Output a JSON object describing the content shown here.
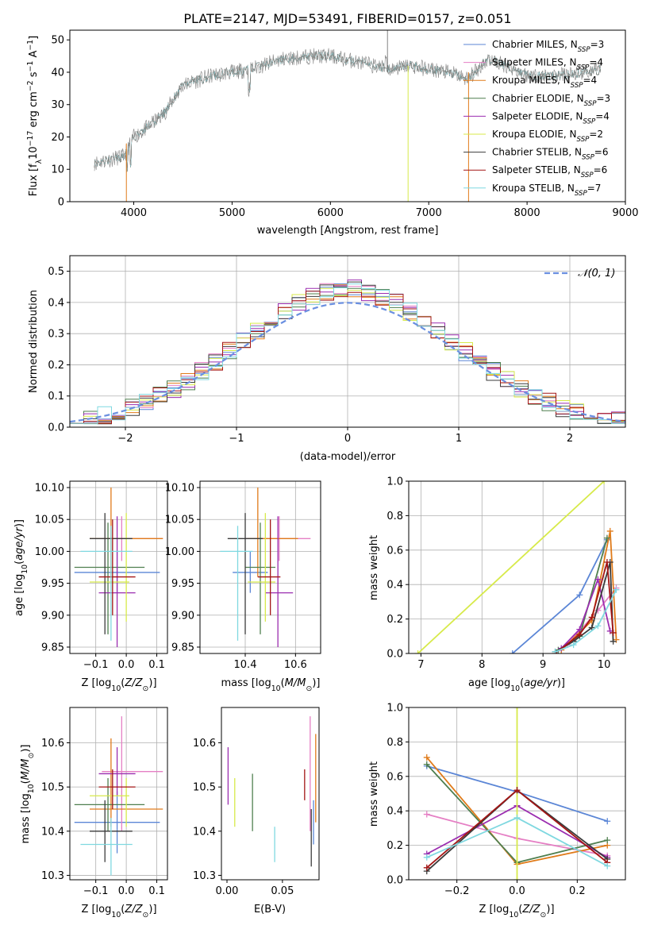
{
  "figure": {
    "title": "PLATE=2147, MJD=53491, FIBERID=0157, z=0.051"
  },
  "colors": {
    "Chabrier MILES": "#5b86d6",
    "Salpeter MILES": "#e57fc4",
    "Kroupa MILES": "#e07b1a",
    "Chabrier ELODIE": "#4f7f4f",
    "Salpeter ELODIE": "#9b2db0",
    "Kroupa ELODIE": "#d7ea4a",
    "Chabrier STELIB": "#3b3b3b",
    "Salpeter STELIB": "#a31515",
    "Kroupa STELIB": "#7fd8e0"
  },
  "chart_data": [
    {
      "id": "spectrum",
      "type": "line",
      "xlabel": "wavelength [Angstrom, rest frame]",
      "ylabel": "Flux [f_λ 10^-17 erg cm^-2 s^-1 A^-1]",
      "xlim": [
        3350,
        9000
      ],
      "ylim": [
        0,
        53
      ],
      "xticks": [
        4000,
        5000,
        6000,
        7000,
        8000,
        9000
      ],
      "yticks": [
        0,
        10,
        20,
        30,
        40,
        50
      ],
      "grid": false,
      "legend_position": "top-right",
      "legend": [
        {
          "label": "Chabrier MILES, N",
          "sub": "SSP",
          "suffix": "=3"
        },
        {
          "label": "Salpeter MILES, N",
          "sub": "SSP",
          "suffix": "=4"
        },
        {
          "label": "Kroupa MILES, N",
          "sub": "SSP",
          "suffix": "=4"
        },
        {
          "label": "Chabrier ELODIE, N",
          "sub": "SSP",
          "suffix": "=3"
        },
        {
          "label": "Salpeter ELODIE, N",
          "sub": "SSP",
          "suffix": "=4"
        },
        {
          "label": "Kroupa ELODIE, N",
          "sub": "SSP",
          "suffix": "=2"
        },
        {
          "label": "Chabrier STELIB, N",
          "sub": "SSP",
          "suffix": "=6"
        },
        {
          "label": "Salpeter STELIB, N",
          "sub": "SSP",
          "suffix": "=6"
        },
        {
          "label": "Kroupa STELIB, N",
          "sub": "SSP",
          "suffix": "=7"
        }
      ],
      "continuum_x": [
        3600,
        3900,
        4000,
        4100,
        4300,
        4500,
        4800,
        5000,
        5200,
        5500,
        5800,
        6000,
        6300,
        6600,
        6800,
        7000,
        7200,
        7400,
        7600,
        7800,
        8000,
        8300,
        8600,
        8800
      ],
      "continuum_y": [
        12,
        14,
        20,
        22,
        27,
        36,
        39,
        40,
        41,
        44,
        45,
        45,
        43,
        41,
        42,
        41,
        40,
        38,
        44,
        42,
        39,
        39,
        40,
        41
      ]
    },
    {
      "id": "residuals",
      "type": "histogram",
      "xlabel": "(data-model)/error",
      "ylabel": "Normed distribution",
      "xlim": [
        -2.5,
        2.5
      ],
      "ylim": [
        0,
        0.55
      ],
      "xticks": [
        -2,
        -1,
        0,
        1,
        2
      ],
      "yticks": [
        0.0,
        0.1,
        0.2,
        0.3,
        0.4,
        0.5
      ],
      "grid": true,
      "legend_position": "top-right",
      "legend": [
        {
          "label": "𝒩(0, 1)",
          "style": "dashed"
        }
      ],
      "bins": 40
    },
    {
      "id": "age_vs_Z",
      "type": "scatter",
      "xlabel": "Z [log10(Z/Z⊙)]",
      "ylabel": "age [log10(age/yr)]",
      "xlim": [
        -0.185,
        0.135
      ],
      "ylim": [
        9.84,
        10.11
      ],
      "xticks": [
        -0.1,
        0.0,
        0.1
      ],
      "yticks": [
        9.85,
        9.9,
        9.95,
        10.0,
        10.05,
        10.1
      ],
      "grid": true
    },
    {
      "id": "age_vs_mass",
      "type": "scatter",
      "xlabel": "mass [log10(M/M⊙)]",
      "xlim": [
        10.22,
        10.7
      ],
      "ylim": [
        9.84,
        10.11
      ],
      "xticks": [
        10.4,
        10.6
      ],
      "yticks": [
        9.85,
        9.9,
        9.95,
        10.0,
        10.05,
        10.1
      ],
      "grid": true
    },
    {
      "id": "mw_vs_age",
      "type": "line",
      "xlabel": "age [log10(age/yr)]",
      "ylabel": "mass weight",
      "xlim": [
        6.8,
        10.35
      ],
      "ylim": [
        0,
        1.0
      ],
      "xticks": [
        7,
        8,
        9,
        10
      ],
      "yticks": [
        0.0,
        0.2,
        0.4,
        0.6,
        0.8,
        1.0
      ],
      "grid": true
    },
    {
      "id": "mass_vs_Z",
      "type": "scatter",
      "xlabel": "Z [log10(Z/Z⊙)]",
      "ylabel": "mass [log10(M/M⊙)]",
      "xlim": [
        -0.185,
        0.135
      ],
      "ylim": [
        10.29,
        10.68
      ],
      "xticks": [
        -0.1,
        0.0,
        0.1
      ],
      "yticks": [
        10.3,
        10.4,
        10.5,
        10.6
      ],
      "grid": true
    },
    {
      "id": "mass_vs_ebv",
      "type": "scatter",
      "xlabel": "E(B-V)",
      "xlim": [
        -0.005,
        0.083
      ],
      "ylim": [
        10.29,
        10.68
      ],
      "xticks": [
        0.0,
        0.05
      ],
      "yticks": [
        10.3,
        10.4,
        10.5,
        10.6
      ],
      "grid": false
    },
    {
      "id": "mw_vs_Z",
      "type": "line",
      "xlabel": "Z [log10(Z/Z⊙)]",
      "ylabel": "mass weight",
      "xlim": [
        -0.36,
        0.36
      ],
      "ylim": [
        0,
        1.0
      ],
      "xticks": [
        -0.2,
        0.0,
        0.2
      ],
      "yticks": [
        0.0,
        0.2,
        0.4,
        0.6,
        0.8,
        1.0
      ],
      "grid": true
    }
  ],
  "models": [
    {
      "name": "Chabrier MILES",
      "Z": [
        -0.17,
        0.11
      ],
      "Zc": -0.03,
      "age": [
        9.935,
        10.0
      ],
      "agec": 9.967,
      "mass": [
        10.35,
        10.49
      ],
      "massc": 10.42,
      "ebv": 0.078,
      "ebvr": [
        10.37,
        10.47
      ],
      "ages": [
        8.5,
        9.6,
        10.05
      ],
      "mw_age": [
        0.0,
        0.34,
        0.66
      ],
      "zmw": [
        [
          -0.3,
          0.66
        ],
        [
          0.0,
          0.51
        ],
        [
          0.3,
          0.34
        ]
      ]
    },
    {
      "name": "Salpeter MILES",
      "Z": [
        -0.08,
        0.12
      ],
      "Zc": -0.015,
      "age": [
        9.985,
        10.055
      ],
      "agec": 10.02,
      "mass": [
        10.4,
        10.66
      ],
      "massc": 10.535,
      "ebv": 0.075,
      "ebvr": [
        10.4,
        10.66
      ],
      "ages": [
        9.4,
        9.9,
        10.2
      ],
      "mw_age": [
        0.05,
        0.25,
        0.38
      ],
      "zmw": [
        [
          -0.3,
          0.38
        ],
        [
          0.0,
          0.24
        ],
        [
          0.3,
          0.14
        ]
      ]
    },
    {
      "name": "Kroupa MILES",
      "Z": [
        -0.12,
        0.12
      ],
      "Zc": -0.05,
      "age": [
        9.96,
        10.1
      ],
      "agec": 10.02,
      "mass": [
        10.41,
        10.61
      ],
      "massc": 10.45,
      "ebv": 0.08,
      "ebvr": [
        10.42,
        10.62
      ],
      "ages": [
        9.3,
        9.8,
        10.1,
        10.2
      ],
      "mw_age": [
        0.02,
        0.19,
        0.71,
        0.08
      ],
      "zmw": [
        [
          -0.3,
          0.71
        ],
        [
          0.0,
          0.09
        ],
        [
          0.3,
          0.2
        ]
      ]
    },
    {
      "name": "Chabrier ELODIE",
      "Z": [
        -0.17,
        0.06
      ],
      "Zc": -0.06,
      "age": [
        9.87,
        10.045
      ],
      "agec": 9.975,
      "mass": [
        10.4,
        10.52
      ],
      "massc": 10.46,
      "ebv": 0.023,
      "ebvr": [
        10.4,
        10.53
      ],
      "ages": [
        9.25,
        9.6,
        10.05
      ],
      "mw_age": [
        0.02,
        0.1,
        0.67
      ],
      "zmw": [
        [
          -0.3,
          0.67
        ],
        [
          0.0,
          0.1
        ],
        [
          0.3,
          0.23
        ]
      ]
    },
    {
      "name": "Salpeter ELODIE",
      "Z": [
        -0.09,
        0.03
      ],
      "Zc": -0.03,
      "age": [
        9.85,
        10.055
      ],
      "agec": 9.935,
      "mass": [
        10.48,
        10.59
      ],
      "massc": 10.53,
      "ebv": 0.001,
      "ebvr": [
        10.46,
        10.59
      ],
      "ages": [
        9.3,
        9.6,
        9.9,
        10.1
      ],
      "mw_age": [
        0.03,
        0.14,
        0.43,
        0.13
      ],
      "zmw": [
        [
          -0.3,
          0.15
        ],
        [
          0.0,
          0.43
        ],
        [
          0.3,
          0.13
        ]
      ]
    },
    {
      "name": "Kroupa ELODIE",
      "Z": [
        -0.12,
        0.01
      ],
      "Zc": 0.0,
      "age": [
        9.89,
        10.06
      ],
      "agec": 9.952,
      "mass": [
        10.41,
        10.52
      ],
      "massc": 10.48,
      "ebv": 0.007,
      "ebvr": [
        10.41,
        10.52
      ],
      "ages": [
        6.95,
        10.0
      ],
      "mw_age": [
        0.0,
        1.0
      ],
      "zmw": [
        [
          0.0,
          1.0
        ],
        [
          0.0,
          0.0
        ]
      ]
    },
    {
      "name": "Chabrier STELIB",
      "Z": [
        -0.12,
        0.02
      ],
      "Zc": -0.07,
      "age": [
        9.87,
        10.06
      ],
      "agec": 10.02,
      "mass": [
        10.33,
        10.47
      ],
      "massc": 10.4,
      "ebv": 0.076,
      "ebvr": [
        10.32,
        10.45
      ],
      "ages": [
        9.2,
        9.5,
        9.8,
        10.1,
        10.15
      ],
      "mw_age": [
        0.01,
        0.07,
        0.15,
        0.53,
        0.07
      ],
      "zmw": [
        [
          -0.3,
          0.05
        ],
        [
          0.0,
          0.52
        ],
        [
          0.3,
          0.12
        ]
      ]
    },
    {
      "name": "Salpeter STELIB",
      "Z": [
        -0.09,
        0.03
      ],
      "Zc": -0.045,
      "age": [
        9.9,
        10.05
      ],
      "agec": 9.96,
      "mass": [
        10.45,
        10.54
      ],
      "massc": 10.5,
      "ebv": 0.07,
      "ebvr": [
        10.47,
        10.54
      ],
      "ages": [
        9.2,
        9.6,
        9.8,
        10.05,
        10.15
      ],
      "mw_age": [
        0.0,
        0.11,
        0.21,
        0.53,
        0.12
      ],
      "zmw": [
        [
          -0.3,
          0.07
        ],
        [
          0.0,
          0.52
        ],
        [
          0.3,
          0.1
        ]
      ]
    },
    {
      "name": "Kroupa STELIB",
      "Z": [
        -0.15,
        0.02
      ],
      "Zc": -0.05,
      "age": [
        9.86,
        10.04
      ],
      "agec": 10.0,
      "mass": [
        10.3,
        10.43
      ],
      "massc": 10.37,
      "ebv": 0.043,
      "ebvr": [
        10.33,
        10.41
      ],
      "ages": [
        9.2,
        9.5,
        9.9,
        10.2
      ],
      "mw_age": [
        0.01,
        0.05,
        0.16,
        0.37
      ],
      "zmw": [
        [
          -0.3,
          0.13
        ],
        [
          0.0,
          0.36
        ],
        [
          0.3,
          0.08
        ]
      ]
    }
  ]
}
